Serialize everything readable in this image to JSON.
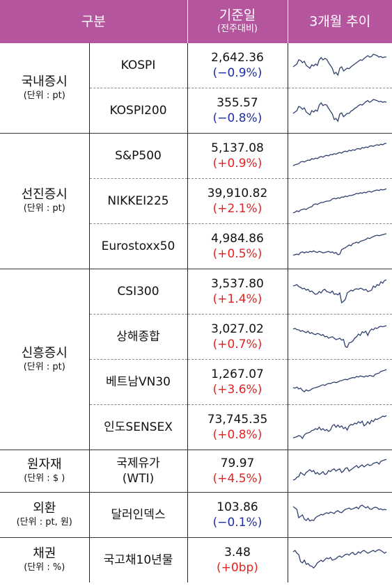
{
  "header": {
    "category": "구분",
    "base_date": "기준일",
    "base_sub": "(전주대비)",
    "trend": "3개월 추이"
  },
  "groups": [
    {
      "name": "국내증시",
      "unit": "(단위 : pt)",
      "rows": [
        {
          "item": [
            "KOSPI"
          ],
          "value": "2,642.36",
          "change": "(−0.9%)",
          "sign": "neg",
          "spark": [
            0.55,
            0.5,
            0.45,
            0.3,
            0.32,
            0.4,
            0.35,
            0.5,
            0.55,
            0.6,
            0.48,
            0.52,
            0.45,
            0.5,
            0.3,
            0.22,
            0.3,
            0.25,
            0.28,
            0.4,
            0.5,
            0.6,
            0.8,
            0.75,
            0.85,
            0.6,
            0.55,
            0.7,
            0.65,
            0.6,
            0.62,
            0.55,
            0.5,
            0.45,
            0.4,
            0.35,
            0.3,
            0.32,
            0.25,
            0.2,
            0.15,
            0.2,
            0.18,
            0.1,
            0.12,
            0.15,
            0.2,
            0.18,
            0.22,
            0.2,
            0.2
          ]
        },
        {
          "item": [
            "KOSPI200"
          ],
          "value": "355.57",
          "change": "(−0.8%)",
          "sign": "neg",
          "spark": [
            0.6,
            0.55,
            0.5,
            0.35,
            0.38,
            0.45,
            0.4,
            0.55,
            0.6,
            0.65,
            0.5,
            0.55,
            0.48,
            0.52,
            0.3,
            0.22,
            0.32,
            0.28,
            0.3,
            0.42,
            0.52,
            0.62,
            0.82,
            0.78,
            0.88,
            0.62,
            0.58,
            0.72,
            0.66,
            0.6,
            0.6,
            0.52,
            0.48,
            0.42,
            0.38,
            0.32,
            0.28,
            0.3,
            0.24,
            0.18,
            0.14,
            0.2,
            0.16,
            0.1,
            0.12,
            0.14,
            0.18,
            0.16,
            0.2,
            0.18,
            0.2
          ]
        }
      ]
    },
    {
      "name": "선진증시",
      "unit": "(단위 : pt)",
      "rows": [
        {
          "item": [
            "S&P500"
          ],
          "value": "5,137.08",
          "change": "(+0.9%)",
          "sign": "pos",
          "spark": [
            0.85,
            0.82,
            0.8,
            0.78,
            0.72,
            0.7,
            0.72,
            0.68,
            0.65,
            0.66,
            0.6,
            0.62,
            0.58,
            0.6,
            0.55,
            0.52,
            0.55,
            0.5,
            0.48,
            0.5,
            0.45,
            0.46,
            0.42,
            0.44,
            0.4,
            0.38,
            0.4,
            0.35,
            0.33,
            0.35,
            0.3,
            0.32,
            0.28,
            0.3,
            0.25,
            0.24,
            0.26,
            0.2,
            0.22,
            0.18,
            0.2,
            0.15,
            0.14,
            0.16,
            0.12,
            0.1,
            0.12,
            0.08,
            0.1,
            0.06,
            0.05
          ]
        },
        {
          "item": [
            "NIKKEI225"
          ],
          "value": "39,910.82",
          "change": "(+2.1%)",
          "sign": "pos",
          "spark": [
            0.92,
            0.9,
            0.85,
            0.88,
            0.82,
            0.8,
            0.78,
            0.8,
            0.75,
            0.72,
            0.7,
            0.62,
            0.6,
            0.62,
            0.58,
            0.55,
            0.55,
            0.52,
            0.5,
            0.5,
            0.48,
            0.42,
            0.4,
            0.42,
            0.38,
            0.4,
            0.35,
            0.36,
            0.32,
            0.34,
            0.3,
            0.3,
            0.28,
            0.26,
            0.22,
            0.24,
            0.2,
            0.22,
            0.18,
            0.2,
            0.16,
            0.15,
            0.18,
            0.14,
            0.12,
            0.1,
            0.12,
            0.08,
            0.1,
            0.08,
            0.06
          ]
        },
        {
          "item": [
            "Eurostoxx50"
          ],
          "value": "4,984.86",
          "change": "(+0.5%)",
          "sign": "pos",
          "spark": [
            0.82,
            0.8,
            0.78,
            0.8,
            0.72,
            0.7,
            0.74,
            0.7,
            0.72,
            0.68,
            0.7,
            0.66,
            0.7,
            0.72,
            0.68,
            0.7,
            0.74,
            0.72,
            0.7,
            0.68,
            0.72,
            0.7,
            0.75,
            0.72,
            0.8,
            0.78,
            0.62,
            0.58,
            0.55,
            0.5,
            0.45,
            0.48,
            0.4,
            0.38,
            0.35,
            0.38,
            0.32,
            0.3,
            0.28,
            0.25,
            0.2,
            0.22,
            0.18,
            0.15,
            0.12,
            0.1,
            0.12,
            0.1,
            0.08,
            0.06,
            0.05
          ]
        }
      ]
    },
    {
      "name": "신흥증시",
      "unit": "(단위 : pt)",
      "rows": [
        {
          "item": [
            "CSI300"
          ],
          "value": "3,537.80",
          "change": "(+1.4%)",
          "sign": "pos",
          "spark": [
            0.3,
            0.28,
            0.25,
            0.32,
            0.35,
            0.4,
            0.38,
            0.45,
            0.42,
            0.5,
            0.48,
            0.55,
            0.6,
            0.58,
            0.5,
            0.55,
            0.45,
            0.42,
            0.5,
            0.52,
            0.55,
            0.48,
            0.6,
            0.58,
            0.62,
            0.55,
            0.9,
            0.85,
            0.78,
            0.55,
            0.5,
            0.45,
            0.48,
            0.42,
            0.4,
            0.42,
            0.38,
            0.4,
            0.45,
            0.42,
            0.5,
            0.48,
            0.45,
            0.3,
            0.35,
            0.25,
            0.28,
            0.15,
            0.2,
            0.1,
            0.08
          ]
        },
        {
          "item": [
            "상해종합"
          ],
          "value": "3,027.02",
          "change": "(+0.7%)",
          "sign": "pos",
          "spark": [
            0.22,
            0.2,
            0.24,
            0.25,
            0.3,
            0.28,
            0.32,
            0.35,
            0.3,
            0.38,
            0.35,
            0.4,
            0.42,
            0.38,
            0.4,
            0.45,
            0.42,
            0.5,
            0.48,
            0.55,
            0.52,
            0.5,
            0.55,
            0.6,
            0.58,
            0.55,
            0.62,
            0.6,
            0.85,
            0.88,
            0.72,
            0.7,
            0.65,
            0.55,
            0.5,
            0.4,
            0.45,
            0.32,
            0.35,
            0.3,
            0.45,
            0.3,
            0.22,
            0.25,
            0.18,
            0.2,
            0.15,
            0.12,
            0.14,
            0.12,
            0.1
          ]
        },
        {
          "item": [
            "베트남VN30"
          ],
          "value": "1,267.07",
          "change": "(+3.6%)",
          "sign": "pos",
          "spark": [
            0.7,
            0.72,
            0.68,
            0.75,
            0.72,
            0.8,
            0.85,
            0.78,
            0.82,
            0.8,
            0.75,
            0.72,
            0.7,
            0.68,
            0.66,
            0.62,
            0.6,
            0.62,
            0.58,
            0.55,
            0.56,
            0.52,
            0.5,
            0.52,
            0.5,
            0.46,
            0.45,
            0.42,
            0.4,
            0.42,
            0.38,
            0.36,
            0.34,
            0.35,
            0.3,
            0.32,
            0.28,
            0.3,
            0.32,
            0.28,
            0.3,
            0.26,
            0.28,
            0.3,
            0.22,
            0.2,
            0.18,
            0.12,
            0.1,
            0.08,
            0.05
          ]
        },
        {
          "item": [
            "인도SENSEX"
          ],
          "value": "73,745.35",
          "change": "(+0.8%)",
          "sign": "pos",
          "spark": [
            0.88,
            0.86,
            0.84,
            0.8,
            0.82,
            0.9,
            0.78,
            0.72,
            0.7,
            0.68,
            0.62,
            0.6,
            0.55,
            0.58,
            0.5,
            0.6,
            0.55,
            0.62,
            0.58,
            0.65,
            0.6,
            0.45,
            0.4,
            0.5,
            0.42,
            0.5,
            0.45,
            0.55,
            0.5,
            0.6,
            0.45,
            0.4,
            0.42,
            0.35,
            0.38,
            0.3,
            0.35,
            0.28,
            0.45,
            0.4,
            0.3,
            0.38,
            0.25,
            0.3,
            0.2,
            0.22,
            0.18,
            0.15,
            0.1,
            0.12,
            0.08
          ]
        }
      ]
    },
    {
      "name": "원자재",
      "unit": "(단위 : $ )",
      "rows": [
        {
          "item": [
            "국제유가",
            "(WTI)"
          ],
          "value": "79.97",
          "change": "(+4.5%)",
          "sign": "pos",
          "spark": [
            0.82,
            0.8,
            0.72,
            0.7,
            0.55,
            0.6,
            0.65,
            0.55,
            0.5,
            0.45,
            0.52,
            0.48,
            0.6,
            0.55,
            0.62,
            0.58,
            0.52,
            0.62,
            0.6,
            0.48,
            0.52,
            0.45,
            0.42,
            0.5,
            0.45,
            0.42,
            0.55,
            0.5,
            0.4,
            0.38,
            0.5,
            0.45,
            0.4,
            0.35,
            0.3,
            0.38,
            0.32,
            0.28,
            0.35,
            0.3,
            0.25,
            0.3,
            0.28,
            0.22,
            0.2,
            0.18,
            0.25,
            0.15,
            0.12,
            0.1,
            0.08
          ]
        }
      ]
    },
    {
      "name": "외환",
      "unit": "(단위 : pt, 원)",
      "rows": [
        {
          "item": [
            "달러인덱스"
          ],
          "value": "103.86",
          "change": "(−0.1%)",
          "sign": "neg",
          "spark": [
            0.2,
            0.25,
            0.3,
            0.6,
            0.55,
            0.5,
            0.65,
            0.7,
            0.62,
            0.72,
            0.68,
            0.7,
            0.6,
            0.55,
            0.52,
            0.48,
            0.5,
            0.45,
            0.42,
            0.45,
            0.4,
            0.42,
            0.45,
            0.38,
            0.35,
            0.4,
            0.42,
            0.35,
            0.3,
            0.28,
            0.25,
            0.3,
            0.28,
            0.25,
            0.22,
            0.28,
            0.18,
            0.15,
            0.2,
            0.25,
            0.2,
            0.28,
            0.3,
            0.25,
            0.22,
            0.24,
            0.3,
            0.28,
            0.32,
            0.3,
            0.32
          ]
        }
      ]
    },
    {
      "name": "채권",
      "unit": "(단위 : %)",
      "rows": [
        {
          "item": [
            "국고채10년물"
          ],
          "value": "3.48",
          "change": "(+0bp)",
          "sign": "pos",
          "spark": [
            0.2,
            0.15,
            0.25,
            0.3,
            0.55,
            0.6,
            0.5,
            0.65,
            0.62,
            0.7,
            0.72,
            0.78,
            0.7,
            0.6,
            0.55,
            0.5,
            0.55,
            0.48,
            0.42,
            0.45,
            0.4,
            0.5,
            0.48,
            0.45,
            0.38,
            0.35,
            0.4,
            0.35,
            0.3,
            0.28,
            0.32,
            0.25,
            0.22,
            0.3,
            0.28,
            0.2,
            0.25,
            0.18,
            0.15,
            0.2,
            0.25,
            0.22,
            0.18,
            0.15,
            0.2,
            0.15,
            0.12,
            0.15,
            0.2,
            0.25,
            0.2
          ]
        }
      ]
    }
  ],
  "colors": {
    "header_bg": "#b5559e",
    "negative": "#1d2fa8",
    "positive": "#e32222",
    "sparkline": "#2e3f6e"
  }
}
